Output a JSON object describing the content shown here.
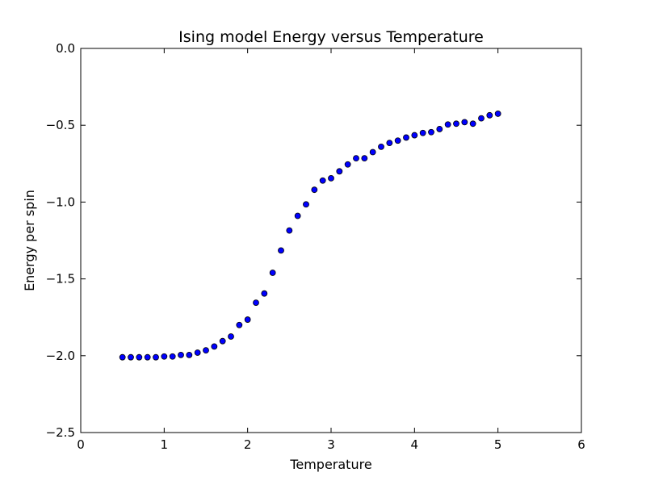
{
  "chart_data": {
    "type": "scatter",
    "title": "Ising model Energy versus Temperature",
    "xlabel": "Temperature",
    "ylabel": "Energy per spin",
    "xlim": [
      0,
      6
    ],
    "ylim": [
      -2.5,
      0.0
    ],
    "xticks": [
      0,
      1,
      2,
      3,
      4,
      5,
      6
    ],
    "xtick_labels": [
      "0",
      "1",
      "2",
      "3",
      "4",
      "5",
      "6"
    ],
    "yticks": [
      0.0,
      -0.5,
      -1.0,
      -1.5,
      -2.0,
      -2.5
    ],
    "ytick_labels": [
      "0.0",
      "−0.5",
      "−1.0",
      "−1.5",
      "−2.0",
      "−2.5"
    ],
    "grid": false,
    "marker_color": "#0000ff",
    "marker_edge_color": "#000000",
    "series": [
      {
        "name": "Energy per spin",
        "x": [
          0.5,
          0.6,
          0.7,
          0.8,
          0.9,
          1.0,
          1.1,
          1.2,
          1.3,
          1.4,
          1.5,
          1.6,
          1.7,
          1.8,
          1.9,
          2.0,
          2.1,
          2.2,
          2.3,
          2.4,
          2.5,
          2.6,
          2.7,
          2.8,
          2.9,
          3.0,
          3.1,
          3.2,
          3.3,
          3.4,
          3.5,
          3.6,
          3.7,
          3.8,
          3.9,
          4.0,
          4.1,
          4.2,
          4.3,
          4.4,
          4.5,
          4.6,
          4.7,
          4.8,
          4.9,
          5.0
        ],
        "y": [
          -2.01,
          -2.01,
          -2.01,
          -2.01,
          -2.01,
          -2.005,
          -2.005,
          -1.995,
          -1.995,
          -1.98,
          -1.965,
          -1.94,
          -1.905,
          -1.875,
          -1.8,
          -1.765,
          -1.655,
          -1.595,
          -1.46,
          -1.315,
          -1.185,
          -1.09,
          -1.015,
          -0.92,
          -0.86,
          -0.845,
          -0.8,
          -0.755,
          -0.715,
          -0.715,
          -0.675,
          -0.64,
          -0.615,
          -0.6,
          -0.58,
          -0.565,
          -0.55,
          -0.545,
          -0.525,
          -0.495,
          -0.49,
          -0.48,
          -0.49,
          -0.455,
          -0.435,
          -0.425
        ]
      }
    ]
  }
}
